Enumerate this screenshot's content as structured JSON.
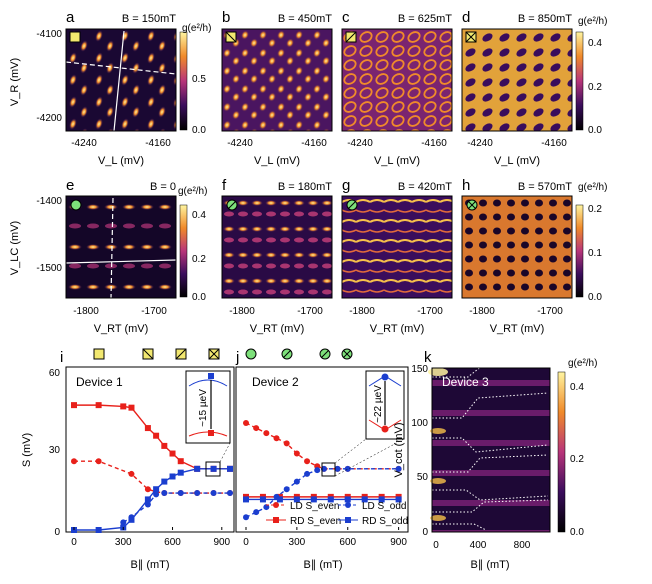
{
  "colors": {
    "map_dark": "#000000",
    "map_mid": "#b8357a",
    "map_bright": "#fff5a0",
    "red": "#e8201a",
    "blue": "#1b3ecf"
  },
  "panels": {
    "a": {
      "letter": "a",
      "field": "B = 150mT"
    },
    "b": {
      "letter": "b",
      "field": "B = 450mT"
    },
    "c": {
      "letter": "c",
      "field": "B = 625mT"
    },
    "d": {
      "letter": "d",
      "field": "B = 850mT"
    },
    "e": {
      "letter": "e",
      "field": "B = 0"
    },
    "f": {
      "letter": "f",
      "field": "B = 180mT"
    },
    "g": {
      "letter": "g",
      "field": "B = 420mT"
    },
    "h": {
      "letter": "h",
      "field": "B = 570mT"
    },
    "i": {
      "letter": "i",
      "device": "Device 1",
      "annotation": "~15 µeV"
    },
    "j": {
      "letter": "j",
      "device": "Device 2",
      "annotation": "~22 µeV"
    },
    "k": {
      "letter": "k",
      "device": "Device 3"
    }
  },
  "row1": {
    "ylabel": "V_R (mV)",
    "xlabel": "V_L (mV)",
    "yticks": [
      "-4100",
      "-4200"
    ],
    "xticks": [
      "-4240",
      "-4160"
    ],
    "cbar_label": "g(e²/h)",
    "cbar_a_ticks": [
      "0.5",
      "0.0"
    ],
    "cbar_d_ticks": [
      "0.4",
      "0.2",
      "0.0"
    ]
  },
  "row2": {
    "ylabel": "V_LC (mV)",
    "xlabel": "V_RT (mV)",
    "yticks": [
      "-1400",
      "-1500"
    ],
    "xticks": [
      "-1800",
      "-1700"
    ],
    "cbar_label": "g(e²/h)",
    "cbar_e_ticks": [
      "0.4",
      "0.2",
      "0.0"
    ],
    "cbar_h_ticks": [
      "0.2",
      "0.1",
      "0.0"
    ]
  },
  "row3": {
    "ylabel_i": "S (mV)",
    "xlabel": "B∥ (mT)",
    "i_yticks": [
      "60",
      "30",
      "0"
    ],
    "i_xticks": [
      "0",
      "300",
      "600",
      "900"
    ],
    "j_xticks": [
      "0",
      "300",
      "600",
      "900"
    ],
    "k_ylabel": "V_cot (mV)",
    "k_yticks": [
      "150",
      "100",
      "50",
      "0"
    ],
    "k_xticks": [
      "0",
      "400",
      "800"
    ],
    "k_cbar_label": "g(e²/h)",
    "k_cbar_ticks": [
      "0.4",
      "0.2",
      "0.0"
    ]
  },
  "legend": {
    "ld_even": "LD S_even",
    "rd_even": "RD S_even",
    "ld_odd": "LD S_odd",
    "rd_odd": "RD S_odd"
  },
  "chart_data": [
    {
      "type": "line",
      "title": "Device 1",
      "xlabel": "B∥ (mT)",
      "ylabel": "S (mV)",
      "xlim": [
        0,
        950
      ],
      "ylim": [
        0,
        62
      ],
      "series": [
        {
          "name": "RD S_even",
          "x": [
            0,
            150,
            300,
            350,
            450,
            500,
            550,
            600,
            650,
            750,
            850,
            950
          ],
          "y": [
            49,
            49,
            48.5,
            48,
            40,
            37,
            33,
            30,
            27,
            24,
            24,
            24
          ]
        },
        {
          "name": "LD S_even",
          "x": [
            0,
            150,
            350,
            450,
            500,
            550,
            650,
            750,
            850,
            950
          ],
          "y": [
            27,
            27,
            22,
            16,
            15,
            14.5,
            14.5,
            14.5,
            14.5,
            14.5
          ]
        },
        {
          "name": "RD S_odd",
          "x": [
            0,
            150,
            300,
            350,
            450,
            500,
            550,
            600,
            650,
            750,
            850,
            950
          ],
          "y": [
            0,
            0,
            1,
            4,
            12,
            16,
            19,
            21,
            22.5,
            24,
            24,
            24
          ]
        },
        {
          "name": "LD S_odd",
          "x": [
            300,
            350,
            450,
            500,
            550,
            650,
            750,
            850,
            950
          ],
          "y": [
            3,
            5,
            10,
            14,
            14.5,
            14.5,
            14.5,
            14.5,
            14.5
          ]
        }
      ]
    },
    {
      "type": "line",
      "title": "Device 2",
      "xlabel": "B∥ (mT)",
      "ylabel": "S (mV)",
      "xlim": [
        0,
        920
      ],
      "ylim": [
        0,
        62
      ],
      "series": [
        {
          "name": "LD S_even",
          "x": [
            0,
            60,
            120,
            180,
            240,
            300,
            360,
            420,
            460,
            540,
            600,
            900
          ],
          "y": [
            42,
            40,
            38,
            36,
            34,
            30,
            27,
            25,
            24,
            24,
            24,
            24
          ]
        },
        {
          "name": "RD S_even",
          "x": [
            0,
            100,
            200,
            300,
            400,
            500,
            600,
            700,
            800,
            900
          ],
          "y": [
            13,
            13,
            13,
            13,
            13,
            13,
            13,
            13,
            13,
            13
          ]
        },
        {
          "name": "LD S_odd",
          "x": [
            0,
            60,
            120,
            180,
            240,
            300,
            360,
            420,
            460,
            540,
            600,
            900
          ],
          "y": [
            5,
            7,
            9,
            13,
            16,
            19,
            22,
            23.5,
            24,
            24,
            24,
            24
          ]
        },
        {
          "name": "RD S_odd",
          "x": [
            0,
            100,
            200,
            300,
            400,
            500,
            600,
            700,
            800,
            900
          ],
          "y": [
            12,
            12,
            12,
            12,
            12,
            12,
            12,
            12,
            12,
            12
          ]
        }
      ]
    }
  ]
}
